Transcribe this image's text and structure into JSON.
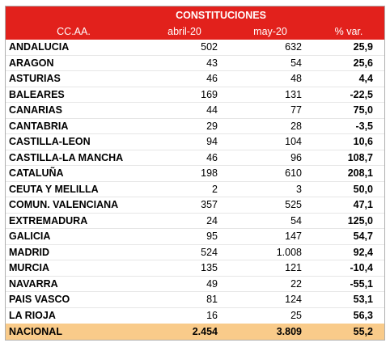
{
  "title": "CONSTITUCIONES",
  "headers": [
    "CC.AA.",
    "abril-20",
    "may-20",
    "% var."
  ],
  "rows": [
    {
      "region": "ANDALUCIA",
      "abril": "502",
      "mayo": "632",
      "var": "25,9"
    },
    {
      "region": "ARAGON",
      "abril": "43",
      "mayo": "54",
      "var": "25,6"
    },
    {
      "region": "ASTURIAS",
      "abril": "46",
      "mayo": "48",
      "var": "4,4"
    },
    {
      "region": "BALEARES",
      "abril": "169",
      "mayo": "131",
      "var": "-22,5"
    },
    {
      "region": "CANARIAS",
      "abril": "44",
      "mayo": "77",
      "var": "75,0"
    },
    {
      "region": "CANTABRIA",
      "abril": "29",
      "mayo": "28",
      "var": "-3,5"
    },
    {
      "region": "CASTILLA-LEON",
      "abril": "94",
      "mayo": "104",
      "var": "10,6"
    },
    {
      "region": "CASTILLA-LA MANCHA",
      "abril": "46",
      "mayo": "96",
      "var": "108,7"
    },
    {
      "region": "CATALUÑA",
      "abril": "198",
      "mayo": "610",
      "var": "208,1"
    },
    {
      "region": "CEUTA Y MELILLA",
      "abril": "2",
      "mayo": "3",
      "var": "50,0"
    },
    {
      "region": "COMUN. VALENCIANA",
      "abril": "357",
      "mayo": "525",
      "var": "47,1"
    },
    {
      "region": "EXTREMADURA",
      "abril": "24",
      "mayo": "54",
      "var": "125,0"
    },
    {
      "region": "GALICIA",
      "abril": "95",
      "mayo": "147",
      "var": "54,7"
    },
    {
      "region": "MADRID",
      "abril": "524",
      "mayo": "1.008",
      "var": "92,4"
    },
    {
      "region": "MURCIA",
      "abril": "135",
      "mayo": "121",
      "var": "-10,4"
    },
    {
      "region": "NAVARRA",
      "abril": "49",
      "mayo": "22",
      "var": "-55,1"
    },
    {
      "region": "PAIS VASCO",
      "abril": "81",
      "mayo": "124",
      "var": "53,1"
    },
    {
      "region": "LA RIOJA",
      "abril": "16",
      "mayo": "25",
      "var": "56,3"
    }
  ],
  "total": {
    "region": "NACIONAL",
    "abril": "2.454",
    "mayo": "3.809",
    "var": "55,2"
  },
  "colors": {
    "header_bg": "#e2211c",
    "total_bg": "#f9cb8a"
  }
}
